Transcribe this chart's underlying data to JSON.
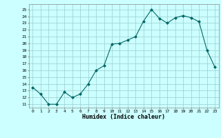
{
  "x": [
    0,
    1,
    2,
    3,
    4,
    5,
    6,
    7,
    8,
    9,
    10,
    11,
    12,
    13,
    14,
    15,
    16,
    17,
    18,
    19,
    20,
    21,
    22,
    23
  ],
  "y": [
    13.5,
    12.5,
    11.0,
    11.0,
    12.8,
    12.0,
    12.5,
    14.0,
    16.0,
    16.7,
    19.9,
    20.0,
    20.5,
    21.0,
    23.3,
    25.0,
    23.7,
    23.0,
    23.8,
    24.1,
    23.8,
    23.2,
    19.0,
    16.5
  ],
  "xlabel": "Humidex (Indice chaleur)",
  "line_color": "#006666",
  "marker_color": "#006666",
  "bg_color": "#ccffff",
  "grid_color": "#99cccc",
  "ylim": [
    10.5,
    25.8
  ],
  "xlim": [
    -0.5,
    23.5
  ],
  "yticks": [
    11,
    12,
    13,
    14,
    15,
    16,
    17,
    18,
    19,
    20,
    21,
    22,
    23,
    24,
    25
  ],
  "xticks": [
    0,
    1,
    2,
    3,
    4,
    5,
    6,
    7,
    8,
    9,
    10,
    11,
    12,
    13,
    14,
    15,
    16,
    17,
    18,
    19,
    20,
    21,
    22,
    23
  ]
}
